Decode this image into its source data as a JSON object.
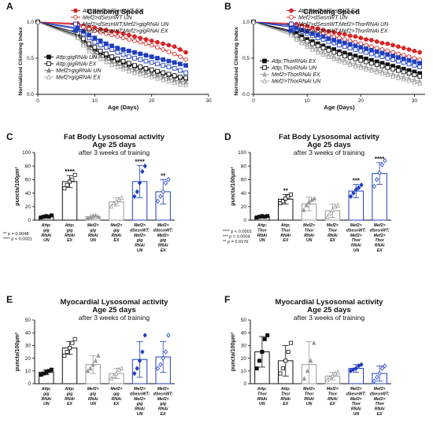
{
  "chart_data": [
    {
      "panel": "A",
      "type": "line",
      "title": "Climbing Speed",
      "xlabel": "Age (Days)",
      "ylabel": "Normalized Climbing Index",
      "xlim": [
        0,
        30
      ],
      "ylim": [
        0,
        1.0
      ],
      "x_ticks": [
        "0",
        "10",
        "20",
        "30"
      ],
      "y_ticks": [
        "0.0",
        "0.5",
        "1.0"
      ],
      "x": [
        0,
        7,
        8,
        9,
        10,
        11,
        12,
        13,
        14,
        15,
        16,
        17,
        18,
        19,
        20,
        21,
        22,
        23,
        24,
        25,
        26
      ],
      "series": [
        {
          "name": "Attp;Mef2>dSesnWT EX",
          "color": "#d62728",
          "marker": "circle",
          "values": [
            1.0,
            0.98,
            0.95,
            0.93,
            0.92,
            0.9,
            0.89,
            0.87,
            0.86,
            0.84,
            0.82,
            0.8,
            0.78,
            0.76,
            0.74,
            0.72,
            0.7,
            0.68,
            0.66,
            0.62,
            0.58
          ]
        },
        {
          "name": "Mef2>dSesnWT UN",
          "color": "#d62728",
          "marker": "circle-open",
          "values": [
            1.0,
            0.96,
            0.93,
            0.9,
            0.88,
            0.86,
            0.84,
            0.82,
            0.8,
            0.78,
            0.76,
            0.74,
            0.72,
            0.7,
            0.68,
            0.65,
            0.62,
            0.59,
            0.56,
            0.52,
            0.48
          ]
        },
        {
          "name": "Mef2>dSesnWT;Mef2>gigRNAi UN",
          "color": "#1f3fbf",
          "marker": "square-open",
          "values": [
            1.0,
            0.9,
            0.84,
            0.78,
            0.72,
            0.68,
            0.65,
            0.62,
            0.58,
            0.55,
            0.52,
            0.5,
            0.48,
            0.46,
            0.44,
            0.42,
            0.4,
            0.38,
            0.36,
            0.33,
            0.3
          ]
        },
        {
          "name": "Mef2>dSesnWT;Mef2>gigRNAi EX",
          "color": "#1f3fbf",
          "marker": "square",
          "values": [
            1.0,
            0.92,
            0.87,
            0.82,
            0.78,
            0.74,
            0.7,
            0.67,
            0.64,
            0.62,
            0.6,
            0.58,
            0.56,
            0.54,
            0.52,
            0.5,
            0.48,
            0.46,
            0.44,
            0.42,
            0.4
          ]
        },
        {
          "name": "Attp;gigRNAi UN",
          "color": "#111111",
          "marker": "square",
          "values": [
            1.0,
            0.82,
            0.74,
            0.68,
            0.62,
            0.57,
            0.53,
            0.5,
            0.47,
            0.44,
            0.41,
            0.39,
            0.37,
            0.35,
            0.33,
            0.31,
            0.29,
            0.27,
            0.25,
            0.23,
            0.22
          ]
        },
        {
          "name": "Attp;gigRNAi EX",
          "color": "#111111",
          "marker": "square-open",
          "values": [
            1.0,
            0.85,
            0.77,
            0.7,
            0.65,
            0.6,
            0.56,
            0.52,
            0.49,
            0.46,
            0.43,
            0.4,
            0.38,
            0.36,
            0.34,
            0.32,
            0.3,
            0.28,
            0.26,
            0.24,
            0.23
          ]
        },
        {
          "name": "Mef2>gigRNAi UN",
          "color": "#888888",
          "marker": "triangle",
          "values": [
            1.0,
            0.8,
            0.71,
            0.64,
            0.58,
            0.53,
            0.49,
            0.45,
            0.42,
            0.39,
            0.36,
            0.34,
            0.32,
            0.3,
            0.28,
            0.26,
            0.24,
            0.22,
            0.2,
            0.18,
            0.17
          ]
        },
        {
          "name": "Mef2>gigRNAi EX",
          "color": "#aaaaaa",
          "marker": "triangle-open",
          "values": [
            1.0,
            0.78,
            0.68,
            0.6,
            0.54,
            0.49,
            0.45,
            0.41,
            0.38,
            0.35,
            0.32,
            0.3,
            0.28,
            0.26,
            0.24,
            0.22,
            0.2,
            0.18,
            0.16,
            0.14,
            0.13
          ]
        }
      ]
    },
    {
      "panel": "B",
      "type": "line",
      "title": "Climbing Speed",
      "xlabel": "Age (Days)",
      "ylabel": "Normalized Climbing Index",
      "xlim": [
        0,
        32
      ],
      "ylim": [
        0,
        1.0
      ],
      "x_ticks": [
        "0",
        "10",
        "20",
        "30"
      ],
      "y_ticks": [
        "0.0",
        "0.5",
        "1.0"
      ],
      "x": [
        0,
        7,
        8,
        9,
        10,
        11,
        12,
        13,
        14,
        15,
        16,
        17,
        18,
        19,
        20,
        21,
        22,
        23,
        24,
        25,
        26,
        27,
        28,
        29,
        30,
        31
      ],
      "series": [
        {
          "name": "Attp;Mef2>dSesnWT EX",
          "color": "#d62728",
          "marker": "circle",
          "values": [
            1.0,
            0.98,
            0.97,
            0.95,
            0.94,
            0.92,
            0.91,
            0.89,
            0.87,
            0.86,
            0.84,
            0.83,
            0.81,
            0.8,
            0.78,
            0.76,
            0.75,
            0.73,
            0.71,
            0.7,
            0.68,
            0.66,
            0.64,
            0.62,
            0.6,
            0.58
          ]
        },
        {
          "name": "Mef2>dSesnWT UN",
          "color": "#d62728",
          "marker": "circle-open",
          "values": [
            1.0,
            0.96,
            0.94,
            0.92,
            0.9,
            0.88,
            0.86,
            0.84,
            0.82,
            0.8,
            0.78,
            0.76,
            0.74,
            0.72,
            0.7,
            0.68,
            0.66,
            0.64,
            0.62,
            0.6,
            0.58,
            0.56,
            0.54,
            0.52,
            0.5,
            0.48
          ]
        },
        {
          "name": "Mef2>dSesnWT;Mef2>ThorRNAi UN",
          "color": "#1f3fbf",
          "marker": "square-open",
          "values": [
            1.0,
            0.93,
            0.9,
            0.87,
            0.84,
            0.81,
            0.78,
            0.76,
            0.73,
            0.71,
            0.68,
            0.66,
            0.64,
            0.62,
            0.6,
            0.58,
            0.56,
            0.54,
            0.52,
            0.5,
            0.48,
            0.46,
            0.44,
            0.42,
            0.4,
            0.38
          ]
        },
        {
          "name": "Mef2>dSesnWT;Mef2>ThorRNAi EX",
          "color": "#1f3fbf",
          "marker": "square",
          "values": [
            1.0,
            0.95,
            0.92,
            0.89,
            0.87,
            0.84,
            0.82,
            0.8,
            0.77,
            0.75,
            0.73,
            0.71,
            0.69,
            0.67,
            0.65,
            0.63,
            0.61,
            0.59,
            0.57,
            0.55,
            0.53,
            0.51,
            0.49,
            0.47,
            0.45,
            0.43
          ]
        },
        {
          "name": "Attp;ThorRNAi EX",
          "color": "#111111",
          "marker": "square",
          "values": [
            1.0,
            0.88,
            0.84,
            0.8,
            0.76,
            0.73,
            0.7,
            0.67,
            0.64,
            0.62,
            0.59,
            0.57,
            0.55,
            0.53,
            0.51,
            0.49,
            0.47,
            0.45,
            0.43,
            0.41,
            0.39,
            0.37,
            0.35,
            0.33,
            0.31,
            0.29
          ]
        },
        {
          "name": "Attp;ThorRNAi UN",
          "color": "#111111",
          "marker": "square-open",
          "values": [
            1.0,
            0.86,
            0.81,
            0.77,
            0.73,
            0.7,
            0.67,
            0.64,
            0.61,
            0.58,
            0.56,
            0.53,
            0.51,
            0.49,
            0.47,
            0.45,
            0.43,
            0.41,
            0.39,
            0.37,
            0.35,
            0.33,
            0.31,
            0.29,
            0.27,
            0.25
          ]
        },
        {
          "name": "Mef2>ThorRNAi EX",
          "color": "#aaaaaa",
          "marker": "triangle",
          "values": [
            1.0,
            0.84,
            0.78,
            0.73,
            0.69,
            0.65,
            0.61,
            0.58,
            0.55,
            0.52,
            0.49,
            0.47,
            0.44,
            0.42,
            0.4,
            0.38,
            0.36,
            0.34,
            0.32,
            0.3,
            0.28,
            0.26,
            0.24,
            0.22,
            0.2,
            0.18
          ]
        },
        {
          "name": "Mef2>ThorRNAi UN",
          "color": "#aaaaaa",
          "marker": "triangle-open",
          "values": [
            1.0,
            0.82,
            0.76,
            0.71,
            0.66,
            0.62,
            0.58,
            0.55,
            0.52,
            0.49,
            0.46,
            0.44,
            0.41,
            0.39,
            0.37,
            0.35,
            0.33,
            0.31,
            0.29,
            0.27,
            0.25,
            0.23,
            0.21,
            0.19,
            0.17,
            0.15
          ]
        }
      ]
    },
    {
      "panel": "C",
      "type": "bar",
      "title": "Fat Body Lysosomal activity",
      "subtitle1": "Age 25 days",
      "subtitle2": "after 3 weeks of training",
      "ylabel": "puncta/100μm²",
      "ylim": [
        0,
        100
      ],
      "y_ticks": [
        "0",
        "20",
        "40",
        "60",
        "80",
        "100"
      ],
      "categories": [
        [
          "Attp;",
          "gig",
          "RNAi",
          "UN"
        ],
        [
          "Attp;",
          "gig",
          "RNAi",
          "EX"
        ],
        [
          "Mef2>",
          "gig",
          "RNAi",
          "UN"
        ],
        [
          "Mef2>",
          "gig",
          "RNAi",
          "EX"
        ],
        [
          "Mef2>",
          "dSesnWT;",
          "Mef2>",
          "gig",
          "RNAi",
          "UN"
        ],
        [
          "Mef2>",
          "dSesnWT;",
          "Mef2>",
          "gig",
          "RNAi",
          "EX"
        ]
      ],
      "values": [
        5,
        57,
        5,
        27,
        57,
        42
      ],
      "errors": [
        2,
        9,
        3,
        6,
        24,
        18
      ],
      "significance": [
        "",
        "****",
        "",
        "",
        "****",
        "**"
      ],
      "bar_colors": [
        "#111111",
        "#111111",
        "#999999",
        "#999999",
        "#1f3fbf",
        "#1f3fbf"
      ],
      "points": [
        [
          4,
          5,
          6,
          5,
          7
        ],
        [
          47,
          52,
          57,
          60,
          67
        ],
        [
          3,
          4,
          6,
          7,
          5
        ],
        [
          20,
          25,
          27,
          30,
          33
        ],
        [
          35,
          42,
          55,
          72,
          80
        ],
        [
          28,
          35,
          42,
          55,
          60
        ]
      ],
      "notes": [
        "** p = 0.0048",
        "**** p < 0.0001"
      ]
    },
    {
      "panel": "D",
      "type": "bar",
      "title": "Fat Body Lysosomal activity",
      "subtitle1": "Age 25 days",
      "subtitle2": "after 3 weeks of training",
      "ylabel": "puncta/100μm²",
      "ylim": [
        0,
        100
      ],
      "y_ticks": [
        "0",
        "20",
        "40",
        "60",
        "80",
        "100"
      ],
      "categories": [
        [
          "Attp;",
          "Thor",
          "RNAi",
          "UN"
        ],
        [
          "Attp;",
          "Thor",
          "RNAi",
          "EX"
        ],
        [
          "Mef2>",
          "Thor",
          "RNAi",
          "UN"
        ],
        [
          "Mef2>",
          "Thor",
          "RNAi",
          "EX"
        ],
        [
          "Mef2>",
          "dSesnWT;",
          "Mef2>",
          "Thor",
          "RNAi",
          "UN"
        ],
        [
          "Mef2>",
          "dSesnWT;",
          "Mef2>",
          "Thor",
          "RNAi",
          "EX"
        ]
      ],
      "values": [
        5,
        31,
        24,
        14,
        43,
        69
      ],
      "errors": [
        2,
        7,
        10,
        10,
        10,
        16
      ],
      "significance": [
        "",
        "**",
        "",
        "",
        "***",
        "****"
      ],
      "bar_colors": [
        "#111111",
        "#111111",
        "#999999",
        "#999999",
        "#1f3fbf",
        "#1f3fbf"
      ],
      "points": [
        [
          4,
          5,
          6,
          5,
          6
        ],
        [
          25,
          28,
          32,
          35,
          38
        ],
        [
          15,
          22,
          27,
          30,
          32
        ],
        [
          5,
          10,
          15,
          20,
          22
        ],
        [
          35,
          40,
          45,
          48,
          52
        ],
        [
          50,
          60,
          70,
          82,
          88
        ]
      ],
      "notes": [
        "**** p < 0.0001",
        "*** p = 0.0004",
        "** p = 0.0176"
      ]
    },
    {
      "panel": "E",
      "type": "bar",
      "title": "Myocardial Lysosomal activity",
      "subtitle1": "Age 25 days",
      "subtitle2": "after 3 weeks of training",
      "ylabel": "puncta/100μm²",
      "ylim": [
        0,
        50
      ],
      "y_ticks": [
        "0",
        "10",
        "20",
        "30",
        "40",
        "50"
      ],
      "categories": [
        [
          "Attp;",
          "gig",
          "RNAi",
          "UN"
        ],
        [
          "Attp;",
          "gig",
          "RNAi",
          "EX"
        ],
        [
          "Mef2>",
          "gig",
          "RNAi",
          "UN"
        ],
        [
          "Mef2>",
          "gig",
          "RNAi",
          "EX"
        ],
        [
          "Mef2>",
          "dSesnWT;",
          "Mef2>",
          "gig",
          "RNAi",
          "UN"
        ],
        [
          "Mef2>",
          "dSesnWT;",
          "Mef2>",
          "gig",
          "RNAi",
          "EX"
        ]
      ],
      "values": [
        9,
        28,
        15,
        8,
        19,
        21
      ],
      "errors": [
        2,
        5,
        7,
        4,
        14,
        12
      ],
      "significance": [
        "",
        "",
        "",
        "",
        "",
        ""
      ],
      "bar_colors": [
        "#111111",
        "#111111",
        "#999999",
        "#999999",
        "#1f3fbf",
        "#1f3fbf"
      ],
      "points": [
        [
          7,
          8,
          9,
          10,
          11
        ],
        [
          22,
          25,
          28,
          32,
          35
        ],
        [
          10,
          12,
          15,
          18,
          22
        ],
        [
          4,
          6,
          8,
          11,
          12
        ],
        [
          8,
          12,
          18,
          25,
          38
        ],
        [
          12,
          15,
          20,
          25,
          38
        ]
      ],
      "notes": []
    },
    {
      "panel": "F",
      "type": "bar",
      "title": "Myocardial Lysosomal activity",
      "subtitle1": "Age 25 days",
      "subtitle2": "after 3 weeks of training",
      "ylabel": "puncta/100μm²",
      "ylim": [
        0,
        50
      ],
      "y_ticks": [
        "0",
        "10",
        "20",
        "30",
        "40",
        "50"
      ],
      "categories": [
        [
          "Attp;",
          "Thor",
          "RNAi",
          "UN"
        ],
        [
          "Attp;",
          "Thor",
          "RNAi",
          "EX"
        ],
        [
          "Mef2>",
          "Thor",
          "RNAi",
          "UN"
        ],
        [
          "Mef2>",
          "Thor",
          "RNAi",
          "EX"
        ],
        [
          "Mef2>",
          "dSesnWT;",
          "Mef2>",
          "Thor",
          "RNAi",
          "UN"
        ],
        [
          "Mef2>",
          "dSesnWT;",
          "Mef2>",
          "Thor",
          "RNAi",
          "EX"
        ]
      ],
      "values": [
        25,
        18,
        15,
        6,
        12,
        8
      ],
      "errors": [
        12,
        12,
        18,
        3,
        3,
        6
      ],
      "significance": [
        "",
        "",
        "",
        "",
        "",
        ""
      ],
      "bar_colors": [
        "#111111",
        "#111111",
        "#999999",
        "#999999",
        "#1f3fbf",
        "#1f3fbf"
      ],
      "points": [
        [
          12,
          18,
          25,
          35,
          38
        ],
        [
          8,
          12,
          18,
          25,
          32
        ],
        [
          4,
          10,
          18,
          32
        ],
        [
          3,
          5,
          6,
          8,
          9
        ],
        [
          10,
          11,
          12,
          14,
          15
        ],
        [
          2,
          5,
          8,
          12,
          14
        ]
      ],
      "notes": []
    }
  ]
}
